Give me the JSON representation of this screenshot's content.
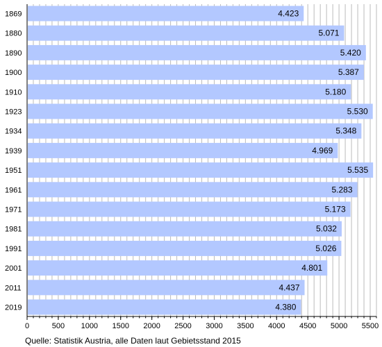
{
  "chart_data": {
    "type": "bar",
    "orientation": "horizontal",
    "categories": [
      "1869",
      "1880",
      "1890",
      "1900",
      "1910",
      "1923",
      "1934",
      "1939",
      "1951",
      "1961",
      "1971",
      "1981",
      "1991",
      "2001",
      "2011",
      "2019"
    ],
    "values": [
      4423,
      5071,
      5420,
      5387,
      5180,
      5530,
      5348,
      4969,
      5535,
      5283,
      5173,
      5032,
      5026,
      4801,
      4437,
      4380
    ],
    "value_labels": [
      "4.423",
      "5.071",
      "5.420",
      "5.387",
      "5.180",
      "5.530",
      "5.348",
      "4.969",
      "5.535",
      "5.283",
      "5.173",
      "5.032",
      "5.026",
      "4.801",
      "4.437",
      "4.380"
    ],
    "xlim": [
      0,
      5600
    ],
    "xticks": [
      0,
      500,
      1000,
      1500,
      2000,
      2500,
      3000,
      3500,
      4000,
      4500,
      5000,
      5500
    ],
    "minor_tick_step": 100,
    "grid": "vertical",
    "bar_color": "#b3c8ff",
    "title": "",
    "xlabel": "",
    "ylabel": ""
  },
  "source_note": "Quelle: Statistik Austria, alle Daten laut Gebietsstand 2015"
}
